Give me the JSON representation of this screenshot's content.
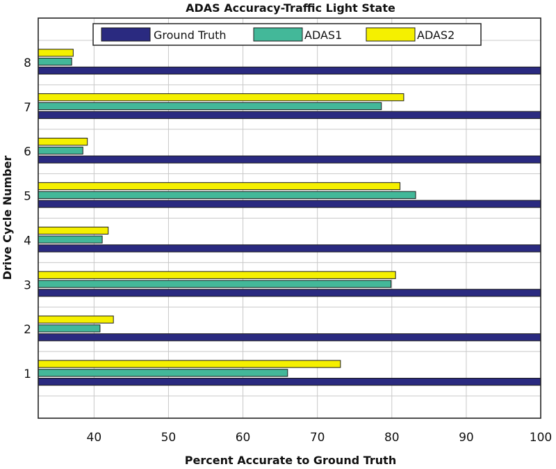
{
  "chart_data": {
    "type": "bar",
    "orientation": "horizontal",
    "title": "ADAS Accuracy-Traffic Light State",
    "xlabel": "Percent Accurate to Ground Truth",
    "ylabel": "Drive Cycle Number",
    "categories": [
      "1",
      "2",
      "3",
      "4",
      "5",
      "6",
      "7",
      "8"
    ],
    "xlim": [
      32.5,
      100
    ],
    "xticks": [
      40,
      50,
      60,
      70,
      80,
      90,
      100
    ],
    "ylim": [
      0,
      9
    ],
    "grid": true,
    "legend_position": "top",
    "series": [
      {
        "name": "Ground Truth",
        "color": "#2a2a80",
        "values": [
          100,
          100,
          100,
          100,
          100,
          100,
          100,
          100
        ]
      },
      {
        "name": "ADAS1",
        "color": "#43b899",
        "values": [
          66.0,
          40.8,
          79.9,
          41.1,
          83.2,
          38.5,
          78.6,
          37.0
        ]
      },
      {
        "name": "ADAS2",
        "color": "#f5f000",
        "values": [
          73.1,
          42.6,
          80.5,
          41.9,
          81.1,
          39.1,
          81.6,
          37.2
        ]
      }
    ]
  }
}
